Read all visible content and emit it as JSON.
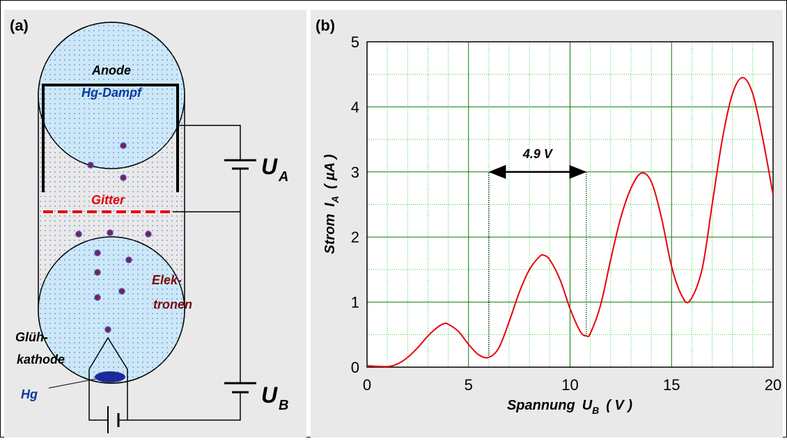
{
  "diagram": {
    "label": "(a)",
    "anode": "Anode",
    "vapor": "Hg-Dampf",
    "grid": "Gitter",
    "electrons": [
      "Elek-",
      "tronen"
    ],
    "cathode": [
      "Glüh-",
      "kathode"
    ],
    "mercury": "Hg",
    "ua": {
      "symbol": "U",
      "sub": "A"
    },
    "ub": {
      "symbol": "U",
      "sub": "B"
    }
  },
  "chart_data": {
    "type": "line",
    "label": "(b)",
    "xlabel": {
      "text": "Spannung",
      "symbol": "U",
      "sub": "B",
      "unit": "( V )"
    },
    "ylabel": {
      "text": "Strom",
      "symbol": "I",
      "sub": "A",
      "unit": "( µA )"
    },
    "x": [
      0,
      1,
      1.5,
      2,
      2.5,
      3,
      3.5,
      3.8,
      4,
      4.5,
      5,
      5.5,
      6,
      6.5,
      7,
      7.5,
      8,
      8.5,
      8.7,
      9,
      9.5,
      10,
      10.5,
      10.8,
      11,
      11.5,
      12,
      12.5,
      13,
      13.5,
      14,
      14.5,
      15,
      15.5,
      15.9,
      16.5,
      17,
      17.5,
      18,
      18.5,
      19,
      19.5,
      20
    ],
    "series": [
      {
        "color": "#e8000b",
        "values": [
          0.02,
          0.01,
          0.05,
          0.15,
          0.3,
          0.48,
          0.62,
          0.67,
          0.66,
          0.55,
          0.35,
          0.19,
          0.15,
          0.3,
          0.7,
          1.15,
          1.5,
          1.7,
          1.72,
          1.65,
          1.35,
          0.9,
          0.55,
          0.48,
          0.52,
          0.95,
          1.65,
          2.3,
          2.75,
          2.98,
          2.85,
          2.3,
          1.55,
          1.1,
          1.02,
          1.5,
          2.5,
          3.5,
          4.2,
          4.45,
          4.2,
          3.5,
          2.65
        ]
      }
    ],
    "xlim": [
      0,
      20
    ],
    "ylim": [
      0,
      5
    ],
    "xticks": [
      0,
      5,
      10,
      15,
      20
    ],
    "yticks": [
      0,
      1,
      2,
      3,
      4,
      5
    ],
    "xminorticks": [
      1,
      2,
      3,
      4,
      6,
      7,
      8,
      9,
      11,
      12,
      13,
      14,
      16,
      17,
      18,
      19
    ],
    "yminorticks": [
      0.5,
      1.5,
      2.5,
      3.5,
      4.5
    ],
    "grid": true,
    "annotation": {
      "text": "4.9 V",
      "x1": 6,
      "x2": 10.8,
      "y": 3
    }
  }
}
